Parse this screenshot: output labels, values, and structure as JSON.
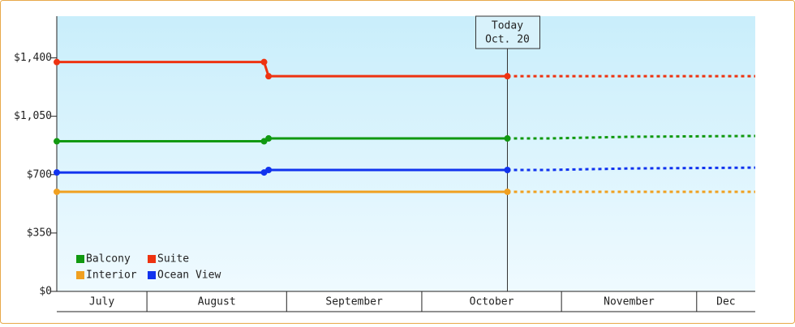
{
  "chart_data": {
    "type": "line",
    "xlim": [
      193,
      348
    ],
    "ylim": [
      0,
      1650
    ],
    "yticks": [
      {
        "value": 0,
        "label": "$0"
      },
      {
        "value": 350,
        "label": "$350"
      },
      {
        "value": 700,
        "label": "$700"
      },
      {
        "value": 1050,
        "label": "$1,050"
      },
      {
        "value": 1400,
        "label": "$1,400"
      }
    ],
    "x_periods": [
      {
        "label": "July",
        "start": 193,
        "end": 213
      },
      {
        "label": "August",
        "start": 213,
        "end": 244
      },
      {
        "label": "September",
        "start": 244,
        "end": 274
      },
      {
        "label": "October",
        "start": 274,
        "end": 305
      },
      {
        "label": "November",
        "start": 305,
        "end": 335
      },
      {
        "label": "Dec",
        "start": 335,
        "end": 348
      }
    ],
    "today": {
      "x": 293,
      "label": "Today",
      "date": "Oct. 20"
    },
    "series": [
      {
        "name": "Balcony",
        "color": "#119911",
        "x": [
          193,
          239,
          240,
          293
        ],
        "values": [
          900,
          900,
          917,
          917
        ],
        "forecast_x": [
          293,
          302,
          320,
          348
        ],
        "forecast_values": [
          917,
          917,
          927,
          932
        ]
      },
      {
        "name": "Suite",
        "color": "#ee3311",
        "x": [
          193,
          239,
          240,
          293
        ],
        "values": [
          1375,
          1375,
          1290,
          1290
        ],
        "forecast_x": [
          293,
          348
        ],
        "forecast_values": [
          1290,
          1290
        ]
      },
      {
        "name": "Interior",
        "color": "#f0a020",
        "x": [
          193,
          293
        ],
        "values": [
          597,
          597
        ],
        "forecast_x": [
          293,
          348
        ],
        "forecast_values": [
          597,
          597
        ]
      },
      {
        "name": "Ocean View",
        "color": "#1133ee",
        "x": [
          193,
          239,
          240,
          293
        ],
        "values": [
          713,
          713,
          728,
          728
        ],
        "forecast_x": [
          293,
          302,
          320,
          348
        ],
        "forecast_values": [
          728,
          728,
          737,
          742
        ]
      }
    ]
  }
}
